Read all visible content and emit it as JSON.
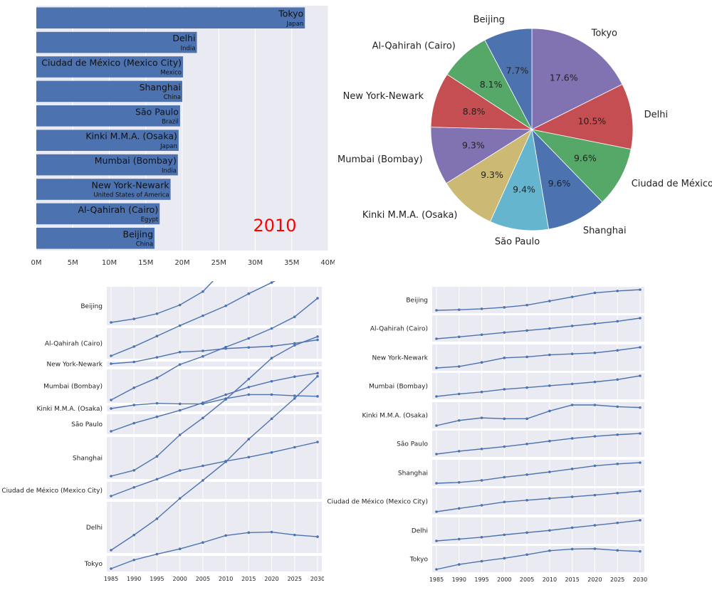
{
  "chart_data": [
    {
      "type": "bar",
      "orientation": "horizontal",
      "categories": [
        "Tokyo",
        "Delhi",
        "Ciudad de México (Mexico City)",
        "Shanghai",
        "São Paulo",
        "Kinki M.M.A. (Osaka)",
        "Mumbai (Bombay)",
        "New York-Newark",
        "Al-Qahirah (Cairo)",
        "Beijing"
      ],
      "countries": [
        "Japan",
        "India",
        "Mexico",
        "China",
        "Brazil",
        "Japan",
        "India",
        "United States of America",
        "Egypt",
        "China"
      ],
      "values": [
        36.8,
        22.0,
        20.1,
        20.0,
        19.7,
        19.5,
        19.4,
        18.4,
        16.9,
        16.2
      ],
      "unit": "M",
      "annotation": "2010",
      "xlim": [
        0,
        40
      ],
      "xticks": [
        0,
        5,
        10,
        15,
        20,
        25,
        30,
        35,
        40
      ],
      "xtick_labels": [
        "0M",
        "5M",
        "10M",
        "15M",
        "20M",
        "25M",
        "30M",
        "35M",
        "40M"
      ],
      "grid": true,
      "color": "#4c72b0",
      "annotation_color": "#ff0000"
    },
    {
      "type": "pie",
      "start": "top",
      "direction": "clockwise",
      "slices": [
        {
          "label": "Tokyo",
          "value": 17.6,
          "pct": "17.6%",
          "color": "#8172b2"
        },
        {
          "label": "Delhi",
          "value": 10.5,
          "pct": "10.5%",
          "color": "#c44e52"
        },
        {
          "label": "Ciudad de México",
          "value": 9.6,
          "pct": "9.6%",
          "color": "#55a868"
        },
        {
          "label": "Shanghai",
          "value": 9.6,
          "pct": "9.6%",
          "color": "#4c72b0"
        },
        {
          "label": "São Paulo",
          "value": 9.4,
          "pct": "9.4%",
          "color": "#64b5cd"
        },
        {
          "label": "Kinki M.M.A. (Osaka)",
          "value": 9.3,
          "pct": "9.3%",
          "color": "#ccb974"
        },
        {
          "label": "Mumbai (Bombay)",
          "value": 9.3,
          "pct": "9.3%",
          "color": "#8172b2"
        },
        {
          "label": "New York-Newark",
          "value": 8.8,
          "pct": "8.8%",
          "color": "#c44e52"
        },
        {
          "label": "Al-Qahirah (Cairo)",
          "value": 8.1,
          "pct": "8.1%",
          "color": "#55a868"
        },
        {
          "label": "Beijing",
          "value": 7.7,
          "pct": "7.7%",
          "color": "#4c72b0"
        }
      ]
    },
    {
      "type": "line",
      "layout": "small-multiples",
      "shared_scale": true,
      "x": [
        1985,
        1990,
        1995,
        2000,
        2005,
        2010,
        2015,
        2020,
        2025,
        2030
      ],
      "xtick_labels": [
        "1985",
        "1990",
        "1995",
        "2000",
        "2005",
        "2010",
        "2015",
        "2020",
        "2025",
        "2030"
      ],
      "color": "#4c72b0",
      "series": [
        {
          "name": "Beijing",
          "values": [
            6.8,
            7.4,
            8.3,
            9.8,
            12.1,
            16.2,
            20.4,
            24.5,
            26.4,
            27.7
          ]
        },
        {
          "name": "Al-Qahirah (Cairo)",
          "values": [
            8.3,
            9.9,
            11.7,
            13.5,
            15.2,
            16.9,
            19.0,
            20.9,
            22.9,
            25.5
          ]
        },
        {
          "name": "New York-Newark",
          "values": [
            15.8,
            16.1,
            16.9,
            17.8,
            18.0,
            18.4,
            18.6,
            18.8,
            19.3,
            19.9
          ]
        },
        {
          "name": "Mumbai (Bombay)",
          "values": [
            10.3,
            12.4,
            14.1,
            16.4,
            17.8,
            19.4,
            20.9,
            22.6,
            24.6,
            27.8
          ]
        },
        {
          "name": "Kinki M.M.A. (Osaka)",
          "values": [
            17.8,
            18.4,
            18.7,
            18.6,
            18.6,
            19.5,
            20.2,
            20.2,
            20.0,
            19.9
          ]
        },
        {
          "name": "São Paulo",
          "values": [
            13.4,
            14.8,
            15.9,
            17.0,
            18.3,
            19.7,
            21.0,
            22.0,
            22.8,
            23.4
          ]
        },
        {
          "name": "Shanghai",
          "values": [
            6.8,
            7.8,
            10.2,
            13.9,
            16.8,
            20.0,
            23.5,
            27.1,
            29.3,
            30.8
          ]
        },
        {
          "name": "Ciudad de México (Mexico City)",
          "values": [
            14.1,
            15.6,
            17.0,
            18.5,
            19.3,
            20.1,
            20.8,
            21.6,
            22.5,
            23.4
          ]
        },
        {
          "name": "Delhi",
          "values": [
            6.8,
            9.4,
            12.2,
            15.7,
            18.8,
            22.0,
            25.9,
            29.4,
            32.9,
            36.7
          ]
        },
        {
          "name": "Tokyo",
          "values": [
            31.1,
            32.6,
            33.6,
            34.5,
            35.6,
            36.8,
            37.3,
            37.4,
            36.9,
            36.6
          ]
        }
      ]
    },
    {
      "type": "line",
      "layout": "small-multiples",
      "shared_scale": false,
      "x": [
        1985,
        1990,
        1995,
        2000,
        2005,
        2010,
        2015,
        2020,
        2025,
        2030
      ],
      "xtick_labels": [
        "1985",
        "1990",
        "1995",
        "2000",
        "2005",
        "2010",
        "2015",
        "2020",
        "2025",
        "2030"
      ],
      "color": "#4c72b0",
      "series": [
        {
          "name": "Beijing",
          "values": [
            6.8,
            7.4,
            8.3,
            9.8,
            12.1,
            16.2,
            20.4,
            24.5,
            26.4,
            27.7
          ]
        },
        {
          "name": "Al-Qahirah (Cairo)",
          "values": [
            8.3,
            9.9,
            11.7,
            13.5,
            15.2,
            16.9,
            19.0,
            20.9,
            22.9,
            25.5
          ]
        },
        {
          "name": "New York-Newark",
          "values": [
            15.8,
            16.1,
            16.9,
            17.8,
            18.0,
            18.4,
            18.6,
            18.8,
            19.3,
            19.9
          ]
        },
        {
          "name": "Mumbai (Bombay)",
          "values": [
            10.3,
            12.4,
            14.1,
            16.4,
            17.8,
            19.4,
            20.9,
            22.6,
            24.6,
            27.8
          ]
        },
        {
          "name": "Kinki M.M.A. (Osaka)",
          "values": [
            17.8,
            18.4,
            18.7,
            18.6,
            18.6,
            19.5,
            20.2,
            20.2,
            20.0,
            19.9
          ]
        },
        {
          "name": "São Paulo",
          "values": [
            13.4,
            14.8,
            15.9,
            17.0,
            18.3,
            19.7,
            21.0,
            22.0,
            22.8,
            23.4
          ]
        },
        {
          "name": "Shanghai",
          "values": [
            6.8,
            7.8,
            10.2,
            13.9,
            16.8,
            20.0,
            23.5,
            27.1,
            29.3,
            30.8
          ]
        },
        {
          "name": "Ciudad de México (Mexico City)",
          "values": [
            14.1,
            15.6,
            17.0,
            18.5,
            19.3,
            20.1,
            20.8,
            21.6,
            22.5,
            23.4
          ]
        },
        {
          "name": "Delhi",
          "values": [
            6.8,
            9.4,
            12.2,
            15.7,
            18.8,
            22.0,
            25.9,
            29.4,
            32.9,
            36.7
          ]
        },
        {
          "name": "Tokyo",
          "values": [
            31.1,
            32.6,
            33.6,
            34.5,
            35.6,
            36.8,
            37.3,
            37.4,
            36.9,
            36.6
          ]
        }
      ]
    }
  ]
}
